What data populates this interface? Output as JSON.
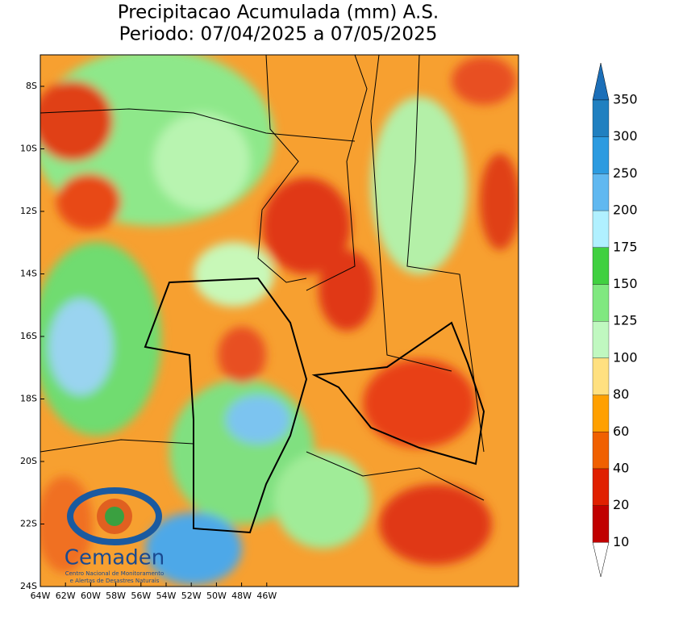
{
  "header": {
    "title": "Precipitacao Acumulada (mm) A.S.",
    "subtitle": "Periodo: 07/04/2025 a 07/05/2025"
  },
  "map": {
    "longitude_labels": [
      "64W",
      "62W",
      "60W",
      "58W",
      "56W",
      "54W",
      "52W",
      "50W",
      "48W",
      "46W"
    ],
    "latitude_labels": [
      "8S",
      "10S",
      "12S",
      "14S",
      "16S",
      "18S",
      "20S",
      "22S",
      "24S"
    ]
  },
  "colorbar": {
    "levels": [
      "350",
      "300",
      "250",
      "200",
      "175",
      "150",
      "125",
      "100",
      "80",
      "60",
      "40",
      "20",
      "10"
    ]
  },
  "logo": {
    "name": "Cemaden",
    "tagline_1": "Centro Nacional de Monitoramento",
    "tagline_2": "e Alertas de Desastres Naturais"
  }
}
